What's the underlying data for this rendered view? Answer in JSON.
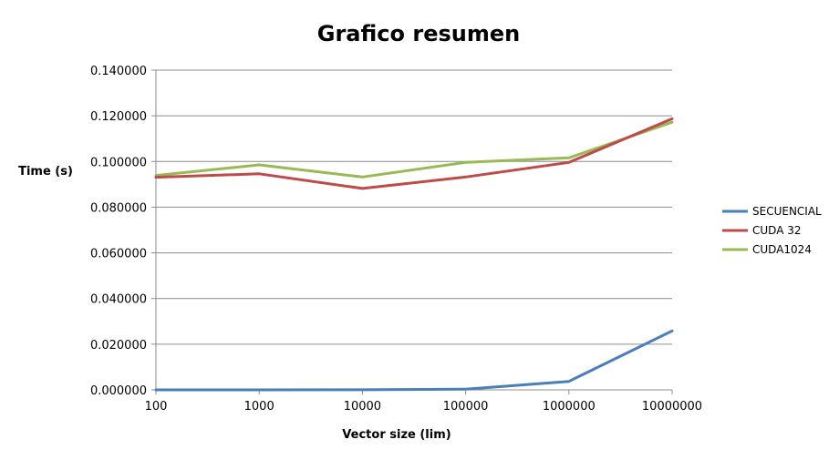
{
  "chart_data": {
    "type": "line",
    "title": "Grafico resumen",
    "xlabel": "Vector size (lim)",
    "ylabel": "Time (s)",
    "categories": [
      "100",
      "1000",
      "10000",
      "100000",
      "1000000",
      "10000000"
    ],
    "ylim": [
      0,
      0.14
    ],
    "yticks": [
      "0.000000",
      "0.020000",
      "0.040000",
      "0.060000",
      "0.080000",
      "0.100000",
      "0.120000",
      "0.140000"
    ],
    "ytick_values": [
      0,
      0.02,
      0.04,
      0.06,
      0.08,
      0.1,
      0.12,
      0.14
    ],
    "grid": true,
    "legend_position": "right",
    "series": [
      {
        "name": "SECUENCIAL",
        "color": "#4a7ebb",
        "values": [
          1e-05,
          1e-05,
          5e-05,
          0.0003,
          0.0037,
          0.0258
        ]
      },
      {
        "name": "CUDA 32",
        "color": "#be4b48",
        "values": [
          0.0931,
          0.0946,
          0.0882,
          0.0932,
          0.0996,
          0.1187
        ]
      },
      {
        "name": "CUDA1024",
        "color": "#98b954",
        "values": [
          0.0939,
          0.0985,
          0.0932,
          0.0996,
          0.1016,
          0.1172
        ]
      }
    ]
  }
}
